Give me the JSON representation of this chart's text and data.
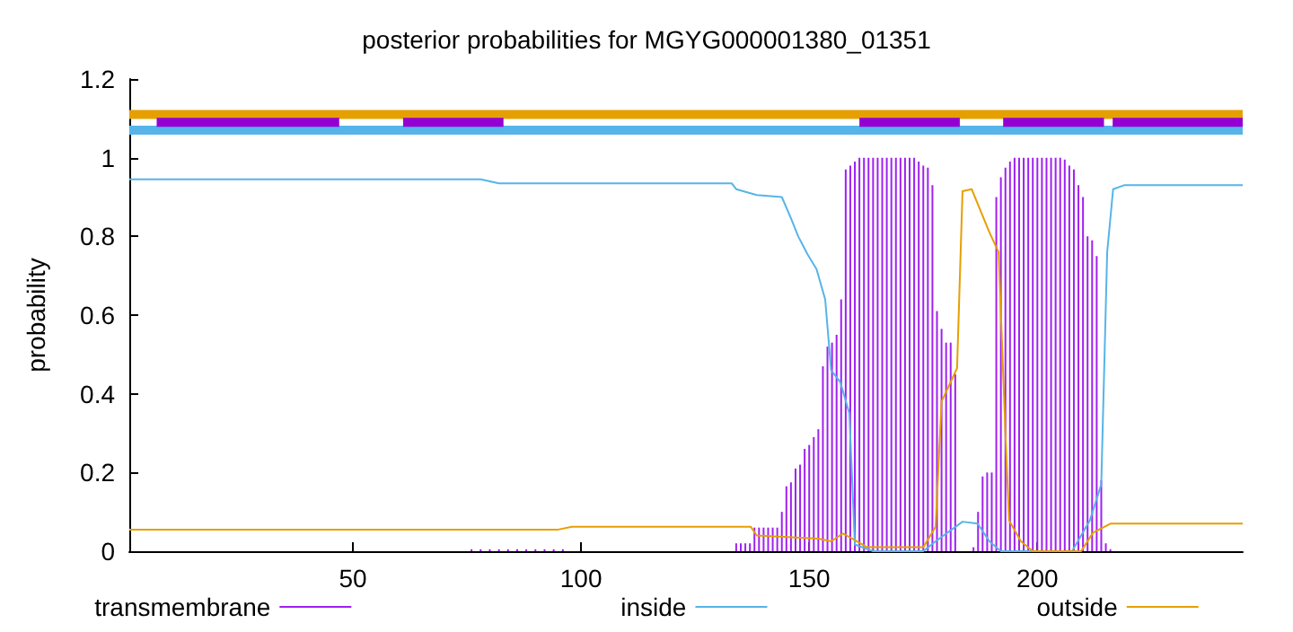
{
  "chart_data": {
    "type": "line",
    "title": "posterior probabilities for MGYG000001380_01351",
    "ylabel": "probability",
    "xlim": [
      1,
      245
    ],
    "xticks": [
      50,
      100,
      150,
      200
    ],
    "ylim": [
      0,
      1.2
    ],
    "yticks": [
      0,
      0.2,
      0.4,
      0.6,
      0.8,
      1,
      1.2
    ],
    "grid": false,
    "legend": "bottom",
    "marker": "none",
    "series": [
      {
        "name": "transmembrane",
        "type": "bar",
        "color": "#a020f0",
        "x": [
          76,
          78,
          80,
          82,
          84,
          86,
          88,
          90,
          92,
          94,
          96,
          134,
          135,
          136,
          137,
          138,
          139,
          140,
          141,
          142,
          143,
          144,
          145,
          146,
          147,
          148,
          149,
          150,
          151,
          152,
          153,
          154,
          155,
          156,
          157,
          158,
          159,
          160,
          161,
          162,
          163,
          164,
          165,
          166,
          167,
          168,
          169,
          170,
          171,
          172,
          173,
          174,
          175,
          176,
          177,
          178,
          179,
          180,
          181,
          182,
          186,
          187,
          188,
          189,
          190,
          191,
          192,
          193,
          194,
          195,
          196,
          197,
          198,
          199,
          200,
          201,
          202,
          203,
          204,
          205,
          206,
          207,
          208,
          209,
          210,
          211,
          212,
          213,
          214,
          215,
          216
        ],
        "values": [
          0.005,
          0.005,
          0.005,
          0.005,
          0.005,
          0.005,
          0.005,
          0.005,
          0.005,
          0.005,
          0.005,
          0.02,
          0.02,
          0.02,
          0.02,
          0.06,
          0.06,
          0.06,
          0.06,
          0.06,
          0.06,
          0.1,
          0.165,
          0.175,
          0.21,
          0.22,
          0.26,
          0.27,
          0.29,
          0.31,
          0.47,
          0.52,
          0.53,
          0.55,
          0.64,
          0.97,
          0.98,
          0.99,
          1,
          1,
          1,
          1,
          1,
          1,
          1,
          1,
          1,
          1,
          1,
          1,
          1,
          0.99,
          0.98,
          0.975,
          0.93,
          0.61,
          0.565,
          0.53,
          0.53,
          0.45,
          0.01,
          0.1,
          0.19,
          0.2,
          0.2,
          0.9,
          0.95,
          0.975,
          0.99,
          1,
          1,
          1,
          1,
          1,
          1,
          1,
          1,
          1,
          1,
          1,
          0.995,
          0.98,
          0.97,
          0.93,
          0.9,
          0.8,
          0.79,
          0.75,
          0.18,
          0.02,
          0.005
        ]
      },
      {
        "name": "inside",
        "color": "#56b4e9",
        "x": [
          1,
          78,
          82,
          133,
          134,
          138.5,
          144,
          146,
          147.6,
          149.6,
          151.6,
          153.5,
          154.8,
          156.8,
          158.8,
          160,
          164,
          175,
          177.7,
          183.6,
          186.9,
          189.5,
          192,
          207.6,
          211.5,
          214,
          215.3,
          216.6,
          219,
          245
        ],
        "values": [
          0.945,
          0.945,
          0.935,
          0.935,
          0.92,
          0.905,
          0.9,
          0.846,
          0.8,
          0.755,
          0.717,
          0.64,
          0.46,
          0.43,
          0.35,
          0.017,
          0,
          0,
          0.025,
          0.075,
          0.07,
          0.025,
          0,
          0,
          0.078,
          0.17,
          0.76,
          0.92,
          0.93,
          0.93
        ]
      },
      {
        "name": "outside",
        "color": "#e69f00",
        "x": [
          1,
          95,
          98,
          137.2,
          138.5,
          152,
          154.8,
          157.4,
          159.4,
          162.7,
          175,
          177.7,
          179,
          181,
          182.4,
          183.6,
          185.6,
          189.5,
          191.5,
          193,
          193.8,
          196.4,
          199,
          209.6,
          212.2,
          216,
          245
        ],
        "values": [
          0.055,
          0.055,
          0.062,
          0.062,
          0.04,
          0.032,
          0.025,
          0.045,
          0.032,
          0.01,
          0.01,
          0.062,
          0.38,
          0.43,
          0.465,
          0.915,
          0.92,
          0.81,
          0.76,
          0.3,
          0.078,
          0.025,
          0,
          0,
          0.047,
          0.07,
          0.07
        ]
      },
      {
        "color": "#e69f00",
        "x": [
          1,
          245
        ],
        "values": [
          1.11,
          1.11
        ]
      },
      {
        "color": "#56b4e9",
        "x": [
          1,
          245
        ],
        "values": [
          1.07,
          1.07
        ]
      },
      {
        "color": "#9400d3",
        "x": [
          7,
          47,
          54,
          61,
          83,
          122,
          161,
          183,
          188,
          192.5,
          214.6,
          215.5,
          216.5,
          245
        ],
        "values": [
          1.09,
          1.09,
          null,
          1.09,
          1.09,
          null,
          1.09,
          1.09,
          null,
          1.09,
          1.09,
          null,
          1.09,
          1.09
        ]
      }
    ]
  }
}
